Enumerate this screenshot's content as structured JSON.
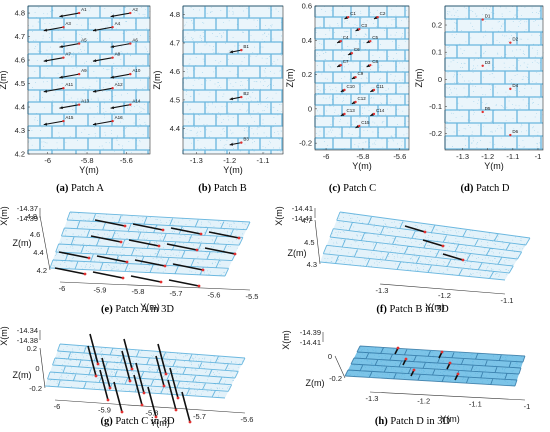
{
  "figure": {
    "panels": [
      {
        "id": "a",
        "caption_letter": "(a)",
        "caption_text": "Patch A",
        "xlabel": "Y(m)",
        "ylabel": "Z(m)",
        "xticks": [
          "-6",
          "-5.8",
          "-5.6"
        ],
        "xrange": [
          -6.1,
          -5.48
        ],
        "yticks": [
          "4.2",
          "4.3",
          "4.4",
          "4.5",
          "4.6",
          "4.7",
          "4.8"
        ],
        "yrange": [
          4.2,
          4.83
        ],
        "points": [
          {
            "label": "A1",
            "y": -5.84,
            "z": 4.8,
            "dy": -0.1,
            "dz": -0.015
          },
          {
            "label": "A2",
            "y": -5.58,
            "z": 4.8,
            "dy": -0.1,
            "dz": -0.015
          },
          {
            "label": "A3",
            "y": -5.92,
            "z": 4.74,
            "dy": -0.1,
            "dz": -0.015
          },
          {
            "label": "A4",
            "y": -5.67,
            "z": 4.74,
            "dy": -0.1,
            "dz": -0.015
          },
          {
            "label": "A5",
            "y": -5.84,
            "z": 4.67,
            "dy": -0.1,
            "dz": -0.015
          },
          {
            "label": "A6",
            "y": -5.58,
            "z": 4.67,
            "dy": -0.1,
            "dz": -0.015
          },
          {
            "label": "A7",
            "y": -5.92,
            "z": 4.61,
            "dy": -0.1,
            "dz": -0.015
          },
          {
            "label": "A8",
            "y": -5.67,
            "z": 4.61,
            "dy": -0.1,
            "dz": -0.015
          },
          {
            "label": "A9",
            "y": -5.84,
            "z": 4.54,
            "dy": -0.1,
            "dz": -0.015
          },
          {
            "label": "A10",
            "y": -5.58,
            "z": 4.54,
            "dy": -0.1,
            "dz": -0.015
          },
          {
            "label": "A11",
            "y": -5.92,
            "z": 4.48,
            "dy": -0.1,
            "dz": -0.015
          },
          {
            "label": "A12",
            "y": -5.67,
            "z": 4.48,
            "dy": -0.1,
            "dz": -0.015
          },
          {
            "label": "A13",
            "y": -5.84,
            "z": 4.41,
            "dy": -0.1,
            "dz": -0.015
          },
          {
            "label": "A14",
            "y": -5.58,
            "z": 4.41,
            "dy": -0.1,
            "dz": -0.015
          },
          {
            "label": "A15",
            "y": -5.92,
            "z": 4.34,
            "dy": -0.1,
            "dz": -0.015
          },
          {
            "label": "A16",
            "y": -5.67,
            "z": 4.34,
            "dy": -0.1,
            "dz": -0.015
          }
        ]
      },
      {
        "id": "b",
        "caption_letter": "(b)",
        "caption_text": "Patch B",
        "xlabel": "Y(m)",
        "ylabel": "Z(m)",
        "xticks": [
          "-1.3",
          "-1.2",
          "-1.1"
        ],
        "xrange": [
          -1.34,
          -1.04
        ],
        "yticks": [
          "4.4",
          "4.5",
          "4.6",
          "4.7",
          "4.8"
        ],
        "yrange": [
          4.31,
          4.83
        ],
        "points": [
          {
            "label": "B1",
            "y": -1.165,
            "z": 4.675,
            "dy": -0.035,
            "dz": -0.008
          },
          {
            "label": "B2",
            "y": -1.165,
            "z": 4.51,
            "dy": -0.035,
            "dz": -0.008
          },
          {
            "label": "B3",
            "y": -1.165,
            "z": 4.35,
            "dy": -0.035,
            "dz": -0.008
          }
        ]
      },
      {
        "id": "c",
        "caption_letter": "(c)",
        "caption_text": "Patch C",
        "xlabel": "Y(m)",
        "ylabel": "Z(m)",
        "xticks": [
          "-6",
          "-5.8",
          "-5.6"
        ],
        "xrange": [
          -6.06,
          -5.55
        ],
        "yticks": [
          "-0.2",
          "0",
          "0.2",
          "0.4",
          "0.6"
        ],
        "yrange": [
          -0.24,
          0.6
        ],
        "points": [
          {
            "label": "C1",
            "y": -5.88,
            "z": 0.535,
            "dy": -0.02,
            "dz": -0.01
          },
          {
            "label": "C2",
            "y": -5.72,
            "z": 0.535,
            "dy": -0.02,
            "dz": -0.01
          },
          {
            "label": "C3",
            "y": -5.82,
            "z": 0.465,
            "dy": -0.02,
            "dz": -0.01
          },
          {
            "label": "C4",
            "y": -5.92,
            "z": 0.395,
            "dy": -0.02,
            "dz": -0.01
          },
          {
            "label": "C5",
            "y": -5.76,
            "z": 0.395,
            "dy": -0.02,
            "dz": -0.01
          },
          {
            "label": "C6",
            "y": -5.86,
            "z": 0.325,
            "dy": -0.02,
            "dz": -0.01
          },
          {
            "label": "C7",
            "y": -5.92,
            "z": 0.255,
            "dy": -0.02,
            "dz": -0.01
          },
          {
            "label": "C8",
            "y": -5.76,
            "z": 0.255,
            "dy": -0.02,
            "dz": -0.01
          },
          {
            "label": "C9",
            "y": -5.84,
            "z": 0.185,
            "dy": -0.02,
            "dz": -0.01
          },
          {
            "label": "C10",
            "y": -5.9,
            "z": 0.11,
            "dy": -0.02,
            "dz": -0.01
          },
          {
            "label": "C11",
            "y": -5.74,
            "z": 0.11,
            "dy": -0.02,
            "dz": -0.01
          },
          {
            "label": "C12",
            "y": -5.84,
            "z": 0.04,
            "dy": -0.02,
            "dz": -0.01
          },
          {
            "label": "C13",
            "y": -5.9,
            "z": -0.03,
            "dy": -0.02,
            "dz": -0.01
          },
          {
            "label": "C14",
            "y": -5.74,
            "z": -0.03,
            "dy": -0.02,
            "dz": -0.01
          },
          {
            "label": "C15",
            "y": -5.82,
            "z": -0.1,
            "dy": -0.02,
            "dz": -0.01
          }
        ]
      },
      {
        "id": "d",
        "caption_letter": "(d)",
        "caption_text": "Patch D",
        "xlabel": "Y(m)",
        "ylabel": "Z(m)",
        "xticks": [
          "-1.3",
          "-1.2",
          "-1.1",
          "-1"
        ],
        "xrange": [
          -1.37,
          -0.98
        ],
        "yticks": [
          "-0.2",
          "-0.1",
          "0",
          "0.1",
          "0.2"
        ],
        "yrange": [
          -0.26,
          0.27
        ],
        "points": [
          {
            "label": "D1",
            "y": -1.22,
            "z": 0.22,
            "dy": 0,
            "dz": 0
          },
          {
            "label": "D2",
            "y": -1.11,
            "z": 0.135,
            "dy": 0,
            "dz": 0
          },
          {
            "label": "D3",
            "y": -1.22,
            "z": 0.05,
            "dy": 0,
            "dz": 0
          },
          {
            "label": "D4",
            "y": -1.11,
            "z": -0.035,
            "dy": 0,
            "dz": 0
          },
          {
            "label": "D5",
            "y": -1.22,
            "z": -0.12,
            "dy": 0,
            "dz": 0
          },
          {
            "label": "D6",
            "y": -1.11,
            "z": -0.205,
            "dy": 0,
            "dz": 0
          }
        ]
      },
      {
        "id": "e",
        "caption_letter": "(e)",
        "caption_text": "Patch A in 3D",
        "xlabel": "Y(m)",
        "zlabel": "Z(m)",
        "vlabel": "X(m)",
        "yticks": [
          "-6",
          "-5.9",
          "-5.8",
          "-5.7",
          "-5.6",
          "-5.5"
        ],
        "zticks": [
          "4.2",
          "4.4",
          "4.6",
          "4.8"
        ],
        "vticks": [
          "-14.37",
          "-14.39"
        ],
        "arrows": 16
      },
      {
        "id": "f",
        "caption_letter": "(f)",
        "caption_text": "Patch B in 3D",
        "xlabel": "Y(m)",
        "zlabel": "Z(m)",
        "vlabel": "X(m)",
        "yticks": [
          "-1.3",
          "-1.2",
          "-1.1"
        ],
        "zticks": [
          "4.3",
          "4.5",
          "4.7"
        ],
        "vticks": [
          "-14.41",
          "-14.41"
        ],
        "arrows": 3
      },
      {
        "id": "g",
        "caption_letter": "(g)",
        "caption_text": "Patch C in 3D",
        "xlabel": "Y(m)",
        "zlabel": "Z(m)",
        "vlabel": "X(m)",
        "yticks": [
          "-6",
          "-5.9",
          "-5.8",
          "-5.7",
          "-5.6"
        ],
        "zticks": [
          "-0.2",
          "0",
          "0.2"
        ],
        "vticks": [
          "-14.34",
          "-14.38"
        ],
        "arrows": 15
      },
      {
        "id": "h",
        "caption_letter": "(h)",
        "caption_text": "Patch D in 3D",
        "xlabel": "Y(m)",
        "zlabel": "Z(m)",
        "vlabel": "X(m)",
        "yticks": [
          "-1.3",
          "-1.2",
          "-1.1",
          "-1"
        ],
        "zticks": [
          "-0.2",
          "0"
        ],
        "vticks": [
          "-14.39",
          "-14.41"
        ],
        "arrows": 6
      }
    ]
  },
  "colors": {
    "point_cloud": "#4aa8d8",
    "arrow": "#111111",
    "marker": "#e23030"
  }
}
